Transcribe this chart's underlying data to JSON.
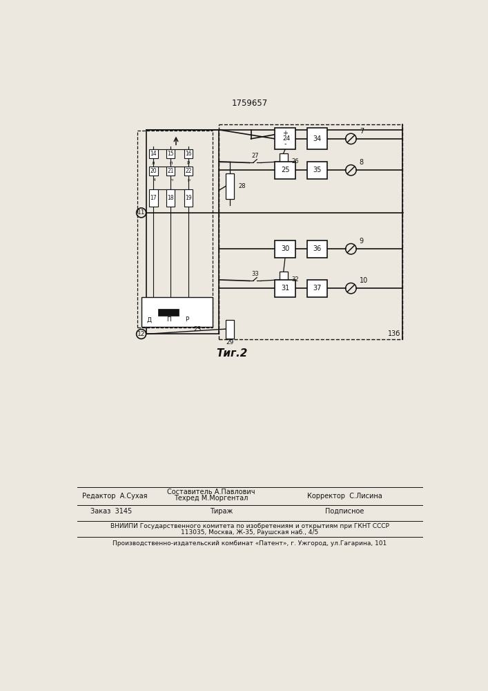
{
  "title": "1759657",
  "bg_color": "#ece8e0",
  "line_color": "#111111",
  "fig_caption": "Τиг.2",
  "footer": {
    "col1_line1": "Редактор  А.Сухая",
    "col2_line1": "Составитель А.Павлович",
    "col2_line2": "Техред М.Моргентал",
    "col3_line1": "Корректор  С.Лисина",
    "order_line": "Заказ  3145",
    "tirazh": "Тираж",
    "podp": "Подписное",
    "vnipi1": "ВНИИПИ Государственного комитета по изобретениям и открытиям при ГКНТ СССР",
    "vnipi2": "113035, Москва, Ж-35, Раушская наб., 4/5",
    "patent": "Производственно-издательский комбинат «Патент», г. Ужгород, ул.Гагарина, 101"
  }
}
